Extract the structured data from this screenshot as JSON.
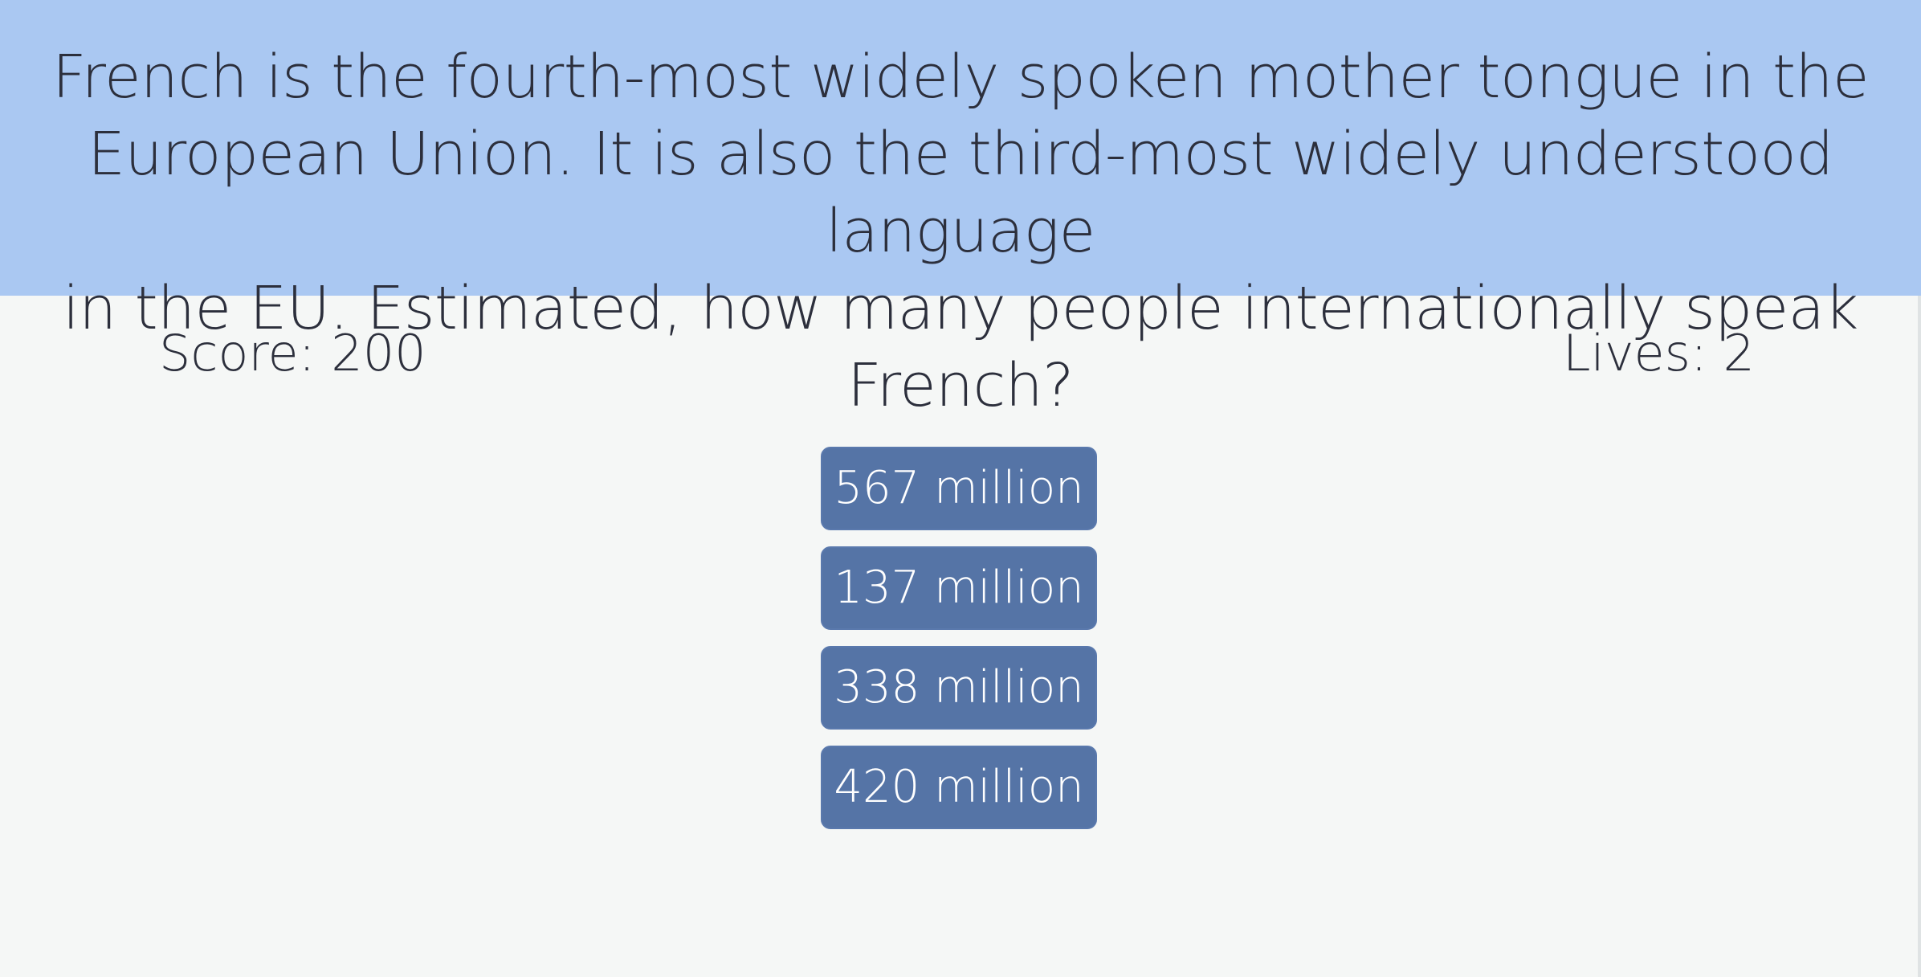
{
  "question": {
    "text": "French is the fourth-most widely spoken mother tongue in the\nEuropean Union. It is also the third-most widely understood language\nin the EU. Estimated, how many people internationally speak French?"
  },
  "status": {
    "score": "Score: 200",
    "lives": "Lives: 2"
  },
  "answers": [
    "567 million",
    "137 million",
    "338 million",
    "420 million"
  ],
  "colors": {
    "banner": "#aac8f2",
    "background": "#f5f7f6",
    "button": "#5574a6",
    "text": "#2c2f3c"
  }
}
